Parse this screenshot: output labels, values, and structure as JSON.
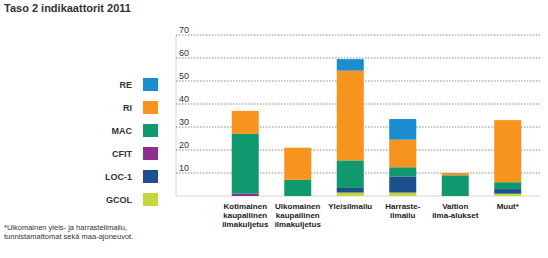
{
  "chart_data": {
    "type": "bar",
    "stacked": true,
    "grid": true,
    "legend": "left",
    "title": "Taso 2 indikaattorit 2011",
    "footnote": "*Ulkomainen yleis- ja harrasteilmailu,\ntunnistamattomat sekä maa-ajoneuvot.",
    "categories": [
      "Kotimainen\nkaupallinen\nilmakuljetus",
      "Ulkomainen\nkaupallinen\nilmakuljetus",
      "Yleisilmailu",
      "Harraste-\nilmailu",
      "Valtion\nilma-alukset",
      "Muut*"
    ],
    "ylim": [
      0,
      70
    ],
    "yticks": [
      10,
      20,
      30,
      40,
      50,
      60,
      70
    ],
    "series": [
      {
        "name": "GCOL",
        "color": "#c3d83c",
        "values": [
          0,
          0,
          1.5,
          1.5,
          0,
          1
        ]
      },
      {
        "name": "LOC-1",
        "color": "#1c4f8c",
        "values": [
          0,
          0,
          2,
          7,
          0,
          2
        ]
      },
      {
        "name": "CFIT",
        "color": "#8c2f91",
        "values": [
          1,
          0,
          0,
          0,
          0,
          0
        ]
      },
      {
        "name": "MAC",
        "color": "#10996f",
        "values": [
          26,
          7,
          12,
          4,
          9,
          3
        ]
      },
      {
        "name": "RI",
        "color": "#f7941e",
        "values": [
          10,
          14,
          39,
          12,
          1,
          27
        ]
      },
      {
        "name": "RE",
        "color": "#1b8ccf",
        "values": [
          0,
          0,
          5,
          9,
          0,
          0
        ]
      }
    ]
  }
}
